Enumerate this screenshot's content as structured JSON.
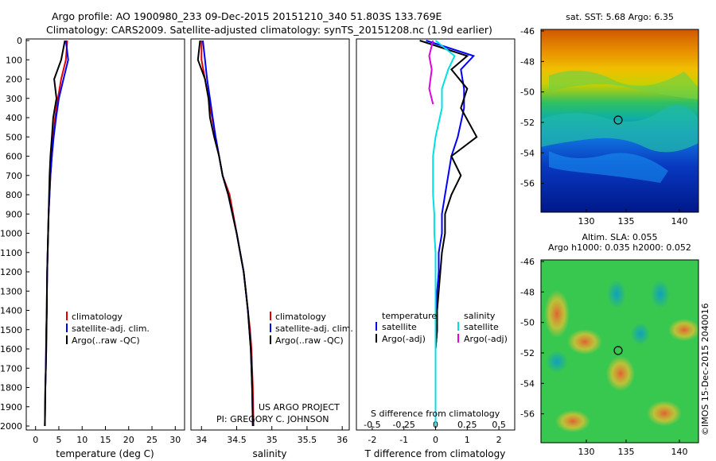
{
  "header": {
    "line1": "Argo profile: AO 1900980_233 09-Dec-2015 20151210_340 51.803S 133.769E",
    "line2": "Climatology: CARS2009. Satellite-adjusted climatology: synTS_20151208.nc (1.9d earlier)"
  },
  "colors": {
    "climatology": "#e00000",
    "satellite": "#0000ff",
    "argo": "#000000",
    "salinity_satellite": "#00e0e0",
    "salinity_argo": "#e000e0"
  },
  "panels": {
    "depth_ticks": [
      "0",
      "100",
      "200",
      "300",
      "400",
      "500",
      "600",
      "700",
      "800",
      "900",
      "1000",
      "1100",
      "1200",
      "1300",
      "1400",
      "1500",
      "1600",
      "1700",
      "1800",
      "1900",
      "2000"
    ],
    "temperature": {
      "xlabel": "temperature (deg C)",
      "xticks": [
        "0",
        "5",
        "10",
        "15",
        "20",
        "25",
        "30"
      ],
      "legend": [
        "climatology",
        "satellite-adj. clim.",
        "Argo(..raw -QC)"
      ]
    },
    "salinity": {
      "xlabel": "salinity",
      "xticks": [
        "34",
        "34.5",
        "35",
        "35.5",
        "36"
      ],
      "legend": [
        "climatology",
        "satellite-adj. clim.",
        "Argo(..raw -QC)"
      ],
      "credit1": "US ARGO PROJECT",
      "credit2": "PI: GREGORY C. JOHNSON"
    },
    "difference": {
      "xlabel": "T difference from climatology",
      "toplabel": "S difference from climatology",
      "xticks_t": [
        "-2",
        "-1",
        "0",
        "1",
        "2"
      ],
      "xticks_s": [
        "-0.5",
        "-0.25",
        "0",
        "0.25",
        "0.5"
      ],
      "legend_t_title": "temperature",
      "legend_t": [
        "satellite",
        "Argo(-adj)"
      ],
      "legend_s_title": "salinity",
      "legend_s": [
        "satellite",
        "Argo(-adj)"
      ]
    }
  },
  "maps": {
    "sst": {
      "title": "sat. SST: 5.68  Argo: 6.35",
      "yticks": [
        "-46",
        "-48",
        "-50",
        "-52",
        "-54",
        "-56"
      ],
      "xticks": [
        "130",
        "135",
        "140"
      ]
    },
    "sla": {
      "title1": "Altim. SLA: 0.055",
      "title2": "Argo h1000: 0.035 h2000: 0.052",
      "yticks": [
        "-46",
        "-48",
        "-50",
        "-52",
        "-54",
        "-56"
      ],
      "xticks": [
        "130",
        "135",
        "140"
      ]
    },
    "float_position": {
      "lon": 133.769,
      "lat": -51.803
    },
    "credit": "©IMOS 15-Dec-2015 2040016"
  },
  "chart_data": [
    {
      "type": "line",
      "panel": "temperature",
      "xlabel": "temperature (deg C)",
      "ylabel": "",
      "xlim": [
        -2,
        32
      ],
      "ylim": [
        2050,
        0
      ],
      "series": [
        {
          "name": "climatology",
          "x": [
            6.8,
            6.5,
            5.5,
            4.8,
            4.2,
            3.8,
            3.5,
            3.2,
            3.0,
            2.8,
            2.7,
            2.6,
            2.5,
            2.45,
            2.4,
            2.3,
            2.25,
            2.2,
            2.1,
            2.0
          ],
          "y": [
            0,
            100,
            200,
            300,
            400,
            500,
            600,
            700,
            800,
            900,
            1000,
            1100,
            1200,
            1300,
            1400,
            1500,
            1600,
            1700,
            1800,
            2000
          ]
        },
        {
          "name": "satellite-adj. clim.",
          "x": [
            6.5,
            7.0,
            6.0,
            5.0,
            4.4,
            3.9,
            3.5,
            3.2,
            3.0,
            2.8,
            2.7,
            2.6,
            2.5,
            2.45,
            2.4,
            2.3,
            2.25,
            2.2,
            2.1,
            2.0
          ],
          "y": [
            0,
            100,
            200,
            300,
            400,
            500,
            600,
            700,
            800,
            900,
            1000,
            1100,
            1200,
            1300,
            1400,
            1500,
            1600,
            1700,
            1800,
            2000
          ]
        },
        {
          "name": "Argo(..raw -QC)",
          "x": [
            6.3,
            5.5,
            4.0,
            4.5,
            3.8,
            3.5,
            3.2,
            3.0,
            2.9,
            2.8,
            2.7,
            2.6,
            2.5,
            2.45,
            2.4,
            2.35,
            2.3,
            2.2,
            2.1,
            2.0
          ],
          "y": [
            0,
            100,
            200,
            300,
            400,
            500,
            600,
            700,
            800,
            900,
            1000,
            1100,
            1200,
            1300,
            1400,
            1500,
            1600,
            1700,
            1800,
            2000
          ]
        }
      ]
    },
    {
      "type": "line",
      "panel": "salinity",
      "xlabel": "salinity",
      "ylabel": "",
      "xlim": [
        33.85,
        36.1
      ],
      "ylim": [
        2050,
        0
      ],
      "series": [
        {
          "name": "climatology",
          "x": [
            34.0,
            34.0,
            34.05,
            34.1,
            34.15,
            34.2,
            34.25,
            34.3,
            34.4,
            34.45,
            34.5,
            34.55,
            34.6,
            34.63,
            34.66,
            34.69,
            34.71,
            34.72,
            34.73,
            34.74
          ],
          "y": [
            0,
            100,
            200,
            300,
            400,
            500,
            600,
            700,
            800,
            900,
            1000,
            1100,
            1200,
            1300,
            1400,
            1500,
            1600,
            1700,
            1800,
            2000
          ]
        },
        {
          "name": "satellite-adj. clim.",
          "x": [
            34.02,
            34.05,
            34.08,
            34.12,
            34.16,
            34.2,
            34.25,
            34.3,
            34.38,
            34.44,
            34.5,
            34.55,
            34.6,
            34.63,
            34.66,
            34.68,
            34.7,
            34.71,
            34.72,
            34.73
          ],
          "y": [
            0,
            100,
            200,
            300,
            400,
            500,
            600,
            700,
            800,
            900,
            1000,
            1100,
            1200,
            1300,
            1400,
            1500,
            1600,
            1700,
            1800,
            2000
          ]
        },
        {
          "name": "Argo(..raw -QC)",
          "x": [
            33.98,
            33.95,
            34.05,
            34.1,
            34.12,
            34.18,
            34.25,
            34.3,
            34.38,
            34.44,
            34.5,
            34.55,
            34.6,
            34.63,
            34.66,
            34.68,
            34.7,
            34.71,
            34.72,
            34.73
          ],
          "y": [
            0,
            100,
            200,
            300,
            400,
            500,
            600,
            700,
            800,
            900,
            1000,
            1100,
            1200,
            1300,
            1400,
            1500,
            1600,
            1700,
            1800,
            2000
          ]
        }
      ]
    },
    {
      "type": "line",
      "panel": "difference",
      "xlabel": "T difference from climatology",
      "ylabel": "",
      "xlim": [
        -2.5,
        2.5
      ],
      "ylim": [
        2050,
        0
      ],
      "series": [
        {
          "name": "satellite",
          "x": [
            -0.3,
            1.2,
            0.8,
            0.9,
            0.9,
            0.7,
            0.5,
            0.4,
            0.3,
            0.2,
            0.2,
            0.1,
            0.1,
            0.05,
            0.05,
            0.05,
            0.0,
            0.0,
            0.0,
            0.0
          ],
          "y": [
            0,
            80,
            150,
            250,
            350,
            500,
            600,
            700,
            800,
            900,
            1000,
            1100,
            1200,
            1300,
            1400,
            1500,
            1600,
            1700,
            1800,
            2000
          ]
        },
        {
          "name": "Argo(-adj)",
          "x": [
            -0.5,
            1.0,
            0.5,
            1.0,
            0.8,
            1.3,
            0.5,
            0.8,
            0.5,
            0.3,
            0.3,
            0.2,
            0.15,
            0.1,
            0.05,
            0.05,
            0.0,
            0.0,
            0.0,
            0.0
          ],
          "y": [
            0,
            80,
            150,
            250,
            350,
            500,
            600,
            700,
            800,
            900,
            1000,
            1100,
            1200,
            1300,
            1400,
            1500,
            1600,
            1700,
            1800,
            2000
          ]
        }
      ]
    },
    {
      "type": "line",
      "panel": "difference",
      "xlabel": "S difference from climatology",
      "ylabel": "",
      "xlim": [
        -0.625,
        0.625
      ],
      "ylim": [
        2050,
        0
      ],
      "series": [
        {
          "name": "satellite",
          "x": [
            0.0,
            0.15,
            0.1,
            0.05,
            0.05,
            0.0,
            -0.02,
            -0.02,
            -0.02,
            -0.01,
            -0.01,
            0.0,
            0.0,
            0.0,
            0.0,
            0.0,
            0.0,
            0.0,
            0.0,
            0.0
          ],
          "y": [
            0,
            80,
            150,
            250,
            350,
            500,
            600,
            700,
            800,
            900,
            1000,
            1100,
            1200,
            1300,
            1400,
            1500,
            1600,
            1700,
            1800,
            2000
          ]
        },
        {
          "name": "Argo(-adj)",
          "x": [
            -0.02,
            -0.05,
            -0.03,
            -0.05,
            -0.02
          ],
          "y": [
            0,
            80,
            150,
            250,
            330
          ]
        }
      ]
    }
  ]
}
